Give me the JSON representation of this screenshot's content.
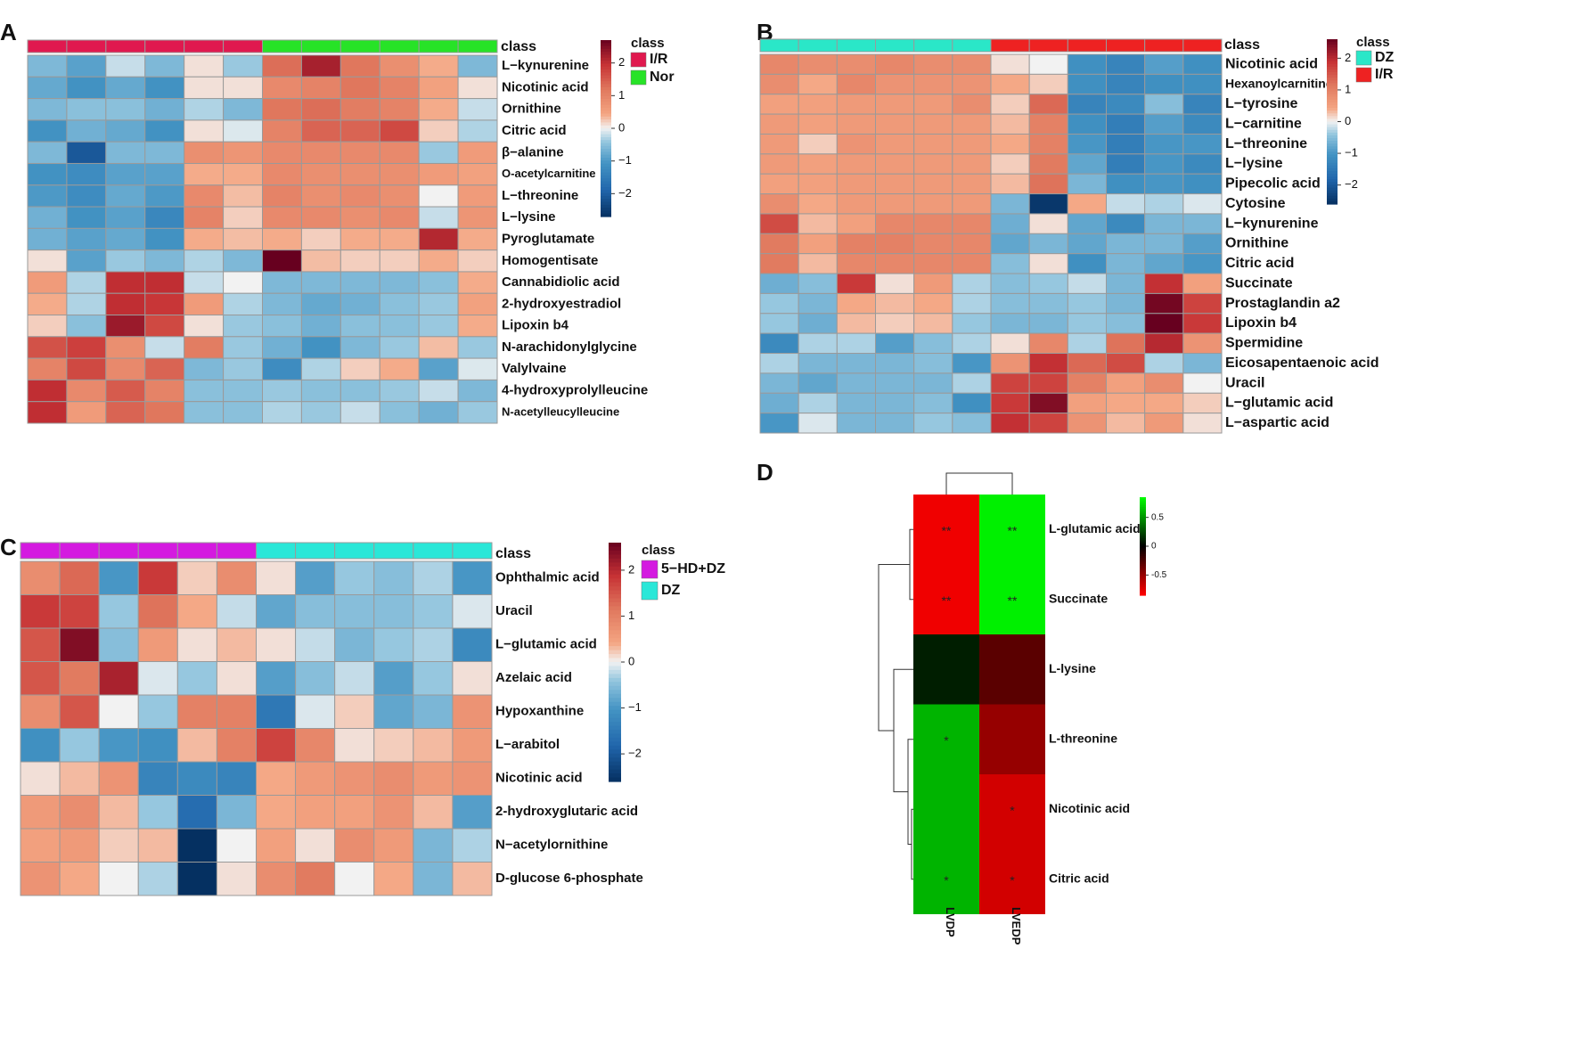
{
  "chart_data": [
    {
      "panel_label": "A",
      "type": "heatmap",
      "class_bar_label": "class",
      "legend": {
        "title": "class",
        "entries": [
          {
            "name": "I/R",
            "color": "#e0194f"
          },
          {
            "name": "Nor",
            "color": "#27e327"
          }
        ]
      },
      "class_bar": [
        "I/R",
        "I/R",
        "I/R",
        "I/R",
        "I/R",
        "I/R",
        "Nor",
        "Nor",
        "Nor",
        "Nor",
        "Nor",
        "Nor"
      ],
      "colorbar": {
        "range": [
          -2.7,
          2.7
        ],
        "ticks": [
          "2",
          "1",
          "0",
          "−1",
          "−2"
        ],
        "tick_values": [
          2,
          1,
          0,
          -1,
          -2
        ]
      },
      "rows": [
        "L−kynurenine",
        "Nicotinic acid",
        "Ornithine",
        "Citric acid",
        "β−alanine",
        "O-acetylcarnitine",
        "L−threonine",
        "L−lysine",
        "Pyroglutamate",
        "Homogentisate",
        "Cannabidiolic acid",
        "2-hydroxyestradiol",
        "Lipoxin b4",
        "N-arachidonylglycine",
        "Valylvaine",
        "4-hydroxyprolylleucine",
        "N-acetylleucylleucine"
      ],
      "values": [
        [
          -0.6,
          -0.9,
          -0.2,
          -0.6,
          0.1,
          -0.4,
          1.3,
          2.2,
          1.2,
          0.8,
          0.4,
          -0.6
        ],
        [
          -0.8,
          -1.1,
          -0.8,
          -1.1,
          0.1,
          0.1,
          0.9,
          1.0,
          1.2,
          1.0,
          0.5,
          0.1
        ],
        [
          -0.6,
          -0.5,
          -0.5,
          -0.7,
          -0.3,
          -0.6,
          1.2,
          1.3,
          1.1,
          1.0,
          0.4,
          -0.2
        ],
        [
          -1.1,
          -0.7,
          -0.8,
          -1.1,
          0.1,
          -0.1,
          1.0,
          1.4,
          1.4,
          1.7,
          0.2,
          -0.3
        ],
        [
          -0.6,
          -2.1,
          -0.6,
          -0.6,
          0.8,
          0.7,
          0.9,
          0.9,
          0.9,
          0.9,
          -0.4,
          0.6
        ],
        [
          -1.1,
          -1.2,
          -0.9,
          -0.9,
          0.4,
          0.4,
          0.9,
          0.8,
          0.8,
          0.8,
          0.6,
          0.5
        ],
        [
          -1.0,
          -1.2,
          -0.8,
          -1.0,
          0.9,
          0.3,
          1.0,
          0.8,
          0.9,
          0.8,
          0.0,
          0.6
        ],
        [
          -0.7,
          -1.1,
          -0.9,
          -1.3,
          1.0,
          0.2,
          0.9,
          0.9,
          0.8,
          0.9,
          -0.2,
          0.7
        ],
        [
          -0.7,
          -0.9,
          -0.8,
          -1.1,
          0.4,
          0.3,
          0.4,
          0.2,
          0.4,
          0.4,
          2.1,
          0.4
        ],
        [
          0.1,
          -0.9,
          -0.4,
          -0.6,
          -0.3,
          -0.6,
          2.7,
          0.3,
          0.2,
          0.2,
          0.4,
          0.2
        ],
        [
          0.6,
          -0.3,
          2.0,
          2.0,
          -0.2,
          0.0,
          -0.6,
          -0.6,
          -0.6,
          -0.6,
          -0.5,
          0.4
        ],
        [
          0.4,
          -0.3,
          2.0,
          1.9,
          0.6,
          -0.3,
          -0.6,
          -0.8,
          -0.7,
          -0.5,
          -0.4,
          0.5
        ],
        [
          0.2,
          -0.5,
          2.3,
          1.7,
          0.1,
          -0.4,
          -0.5,
          -0.7,
          -0.5,
          -0.5,
          -0.4,
          0.4
        ],
        [
          1.6,
          1.8,
          0.8,
          -0.2,
          1.1,
          -0.4,
          -0.7,
          -1.1,
          -0.6,
          -0.4,
          0.3,
          -0.4
        ],
        [
          1.0,
          1.7,
          0.9,
          1.4,
          -0.6,
          -0.4,
          -1.2,
          -0.3,
          0.2,
          0.4,
          -0.9,
          -0.1
        ],
        [
          2.0,
          0.9,
          1.5,
          1.0,
          -0.5,
          -0.5,
          -0.4,
          -0.5,
          -0.5,
          -0.4,
          -0.2,
          -0.6
        ],
        [
          2.0,
          0.6,
          1.4,
          1.2,
          -0.5,
          -0.5,
          -0.3,
          -0.4,
          -0.2,
          -0.5,
          -0.7,
          -0.4
        ]
      ]
    },
    {
      "panel_label": "B",
      "type": "heatmap",
      "class_bar_label": "class",
      "legend": {
        "title": "class",
        "entries": [
          {
            "name": "DZ",
            "color": "#2ae7c8"
          },
          {
            "name": "I/R",
            "color": "#ee2222"
          }
        ]
      },
      "class_bar": [
        "DZ",
        "DZ",
        "DZ",
        "DZ",
        "DZ",
        "DZ",
        "I/R",
        "I/R",
        "I/R",
        "I/R",
        "I/R",
        "I/R"
      ],
      "colorbar": {
        "range": [
          -2.6,
          2.6
        ],
        "ticks": [
          "2",
          "1",
          "0",
          "−1",
          "−2"
        ],
        "tick_values": [
          2,
          1,
          0,
          -1,
          -2
        ]
      },
      "rows": [
        "Nicotinic acid",
        "Hexanoylcarnitine",
        "L−tyrosine",
        "L−carnitine",
        "L−threonine",
        "L−lysine",
        "Pipecolic acid",
        "Cytosine",
        "L−kynurenine",
        "Ornithine",
        "Citric acid",
        "Succinate",
        "Prostaglandin a2",
        "Lipoxin b4",
        "Spermidine",
        "Eicosapentaenoic acid",
        "Uracil",
        "L−glutamic acid",
        "L−aspartic acid"
      ],
      "values": [
        [
          0.9,
          0.8,
          0.8,
          0.9,
          0.8,
          0.8,
          0.1,
          0.0,
          -1.1,
          -1.3,
          -0.9,
          -1.1
        ],
        [
          0.8,
          0.4,
          0.9,
          0.7,
          0.7,
          0.7,
          0.4,
          0.2,
          -1.1,
          -1.3,
          -1.1,
          -1.1
        ],
        [
          0.5,
          0.5,
          0.6,
          0.6,
          0.6,
          0.8,
          0.2,
          1.3,
          -1.3,
          -1.2,
          -0.5,
          -1.3
        ],
        [
          0.6,
          0.5,
          0.6,
          0.6,
          0.6,
          0.6,
          0.3,
          1.0,
          -1.1,
          -1.4,
          -0.9,
          -1.2
        ],
        [
          0.6,
          0.2,
          0.7,
          0.6,
          0.6,
          0.6,
          0.4,
          1.0,
          -1.0,
          -1.4,
          -1.0,
          -1.0
        ],
        [
          0.6,
          0.5,
          0.6,
          0.6,
          0.6,
          0.6,
          0.2,
          1.1,
          -0.8,
          -1.4,
          -1.0,
          -1.2
        ],
        [
          0.5,
          0.5,
          0.6,
          0.6,
          0.6,
          0.6,
          0.3,
          1.2,
          -0.6,
          -1.1,
          -1.0,
          -1.1
        ],
        [
          0.8,
          0.4,
          0.6,
          0.6,
          0.6,
          0.6,
          -0.6,
          -2.5,
          0.4,
          -0.2,
          -0.3,
          -0.1
        ],
        [
          1.6,
          0.3,
          0.5,
          0.9,
          0.9,
          0.9,
          -0.7,
          0.1,
          -0.8,
          -1.2,
          -0.6,
          -0.6
        ],
        [
          1.1,
          0.5,
          1.0,
          1.0,
          0.9,
          0.9,
          -0.8,
          -0.6,
          -0.8,
          -0.6,
          -0.6,
          -0.9
        ],
        [
          1.1,
          0.3,
          0.9,
          0.9,
          0.9,
          0.9,
          -0.5,
          0.1,
          -1.1,
          -0.6,
          -0.8,
          -1.0
        ],
        [
          -0.7,
          -0.5,
          1.8,
          0.1,
          0.6,
          -0.3,
          -0.5,
          -0.4,
          -0.2,
          -0.6,
          1.9,
          0.5
        ],
        [
          -0.4,
          -0.6,
          0.4,
          0.3,
          0.4,
          -0.3,
          -0.5,
          -0.5,
          -0.4,
          -0.6,
          2.5,
          1.7
        ],
        [
          -0.4,
          -0.7,
          0.3,
          0.2,
          0.3,
          -0.4,
          -0.6,
          -0.6,
          -0.4,
          -0.5,
          2.6,
          1.8
        ],
        [
          -1.2,
          -0.3,
          -0.3,
          -0.9,
          -0.5,
          -0.3,
          0.1,
          0.9,
          -0.3,
          1.2,
          2.0,
          0.7
        ],
        [
          -0.3,
          -0.6,
          -0.6,
          -0.6,
          -0.5,
          -1.0,
          0.7,
          1.9,
          1.3,
          1.6,
          -0.3,
          -0.6
        ],
        [
          -0.6,
          -0.8,
          -0.6,
          -0.6,
          -0.6,
          -0.3,
          1.7,
          1.7,
          1.0,
          0.5,
          0.8,
          0.0
        ],
        [
          -0.7,
          -0.3,
          -0.6,
          -0.6,
          -0.5,
          -1.1,
          1.8,
          2.4,
          0.5,
          0.4,
          0.4,
          0.2
        ],
        [
          -1.0,
          -0.1,
          -0.6,
          -0.6,
          -0.4,
          -0.5,
          1.9,
          1.7,
          0.7,
          0.3,
          0.6,
          0.1
        ]
      ]
    },
    {
      "panel_label": "C",
      "type": "heatmap",
      "class_bar_label": "class",
      "legend": {
        "title": "class",
        "entries": [
          {
            "name": "5−HD+DZ",
            "color": "#d41ae0"
          },
          {
            "name": "DZ",
            "color": "#2ae7d8"
          }
        ]
      },
      "class_bar": [
        "5−HD+DZ",
        "5−HD+DZ",
        "5−HD+DZ",
        "5−HD+DZ",
        "5−HD+DZ",
        "5−HD+DZ",
        "DZ",
        "DZ",
        "DZ",
        "DZ",
        "DZ",
        "DZ"
      ],
      "colorbar": {
        "range": [
          -2.6,
          2.6
        ],
        "ticks": [
          "2",
          "1",
          "0",
          "−1",
          "−2"
        ],
        "tick_values": [
          2,
          1,
          0,
          -1,
          -2
        ]
      },
      "rows": [
        "Ophthalmic acid",
        "Uracil",
        "L−glutamic acid",
        "Azelaic acid",
        "Hypoxanthine",
        "L−arabitol",
        "Nicotinic acid",
        "2-hydroxyglutaric acid",
        "N−acetylornithine",
        "D-glucose 6-phosphate"
      ],
      "values": [
        [
          0.8,
          1.3,
          -1.0,
          1.8,
          0.2,
          0.8,
          0.1,
          -0.9,
          -0.4,
          -0.5,
          -0.3,
          -1.0
        ],
        [
          1.8,
          1.7,
          -0.4,
          1.2,
          0.4,
          -0.2,
          -0.8,
          -0.5,
          -0.5,
          -0.5,
          -0.4,
          -0.1
        ],
        [
          1.5,
          2.4,
          -0.5,
          0.6,
          0.1,
          0.3,
          0.1,
          -0.2,
          -0.6,
          -0.4,
          -0.3,
          -1.2
        ],
        [
          1.5,
          1.1,
          2.1,
          -0.1,
          -0.4,
          0.1,
          -0.9,
          -0.5,
          -0.2,
          -0.9,
          -0.4,
          0.1
        ],
        [
          0.8,
          1.5,
          0.0,
          -0.4,
          1.0,
          1.0,
          -1.5,
          -0.1,
          0.2,
          -0.8,
          -0.6,
          0.7
        ],
        [
          -1.1,
          -0.4,
          -1.0,
          -1.1,
          0.3,
          1.0,
          1.7,
          0.9,
          0.1,
          0.2,
          0.3,
          0.6
        ],
        [
          0.1,
          0.3,
          0.7,
          -1.3,
          -1.2,
          -1.3,
          0.4,
          0.6,
          0.7,
          0.8,
          0.6,
          0.7
        ],
        [
          0.6,
          0.8,
          0.3,
          -0.4,
          -1.7,
          -0.6,
          0.4,
          0.5,
          0.5,
          0.7,
          0.3,
          -0.9
        ],
        [
          0.5,
          0.6,
          0.2,
          0.3,
          -2.6,
          0.0,
          0.5,
          0.1,
          0.8,
          0.6,
          -0.6,
          -0.3
        ],
        [
          0.7,
          0.4,
          0.0,
          -0.3,
          -2.6,
          0.1,
          0.8,
          1.1,
          0.0,
          0.4,
          -0.6,
          0.3
        ]
      ]
    },
    {
      "panel_label": "D",
      "type": "heatmap",
      "rows": [
        "L-glutamic acid",
        "Succinate",
        "L-lysine",
        "L-threonine",
        "Nicotinic acid",
        "Citric acid"
      ],
      "columns": [
        "LVDP",
        "LVEDP"
      ],
      "values": [
        [
          -0.8,
          0.8
        ],
        [
          -0.8,
          0.8
        ],
        [
          0.1,
          -0.3
        ],
        [
          0.6,
          -0.5
        ],
        [
          0.6,
          -0.7
        ],
        [
          0.6,
          -0.7
        ]
      ],
      "significance": [
        [
          "**",
          "**"
        ],
        [
          "**",
          "**"
        ],
        [
          "",
          ""
        ],
        [
          "*",
          ""
        ],
        [
          "",
          "*"
        ],
        [
          "*",
          "*"
        ]
      ],
      "colorbar": {
        "range": [
          -0.85,
          0.85
        ],
        "ticks": [
          "0.5",
          "0",
          "-0.5"
        ],
        "tick_values": [
          0.5,
          0,
          -0.5
        ]
      }
    }
  ]
}
